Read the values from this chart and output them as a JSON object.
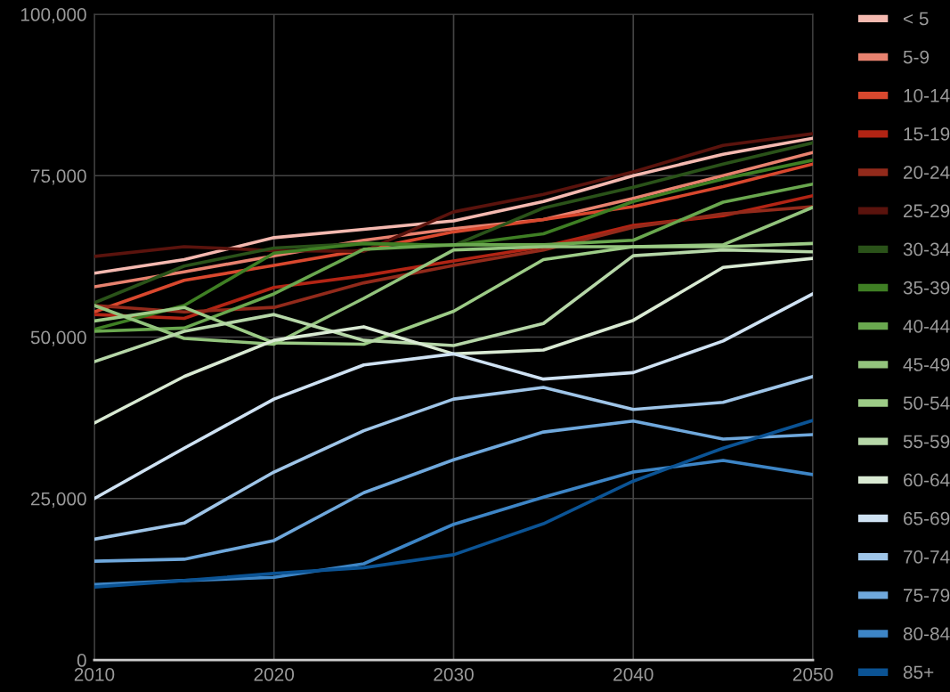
{
  "chart_data": {
    "type": "line",
    "x": [
      2010,
      2015,
      2020,
      2025,
      2030,
      2035,
      2040,
      2045,
      2050
    ],
    "xlim": [
      2010,
      2050
    ],
    "xticks": [
      2010,
      2020,
      2030,
      2040,
      2050
    ],
    "ylim": [
      0,
      100000
    ],
    "yticks": [
      0,
      {
        "value": 25000,
        "label": "25,000"
      },
      {
        "value": 50000,
        "label": "50,000"
      },
      {
        "value": 75000,
        "label": "75,000"
      },
      {
        "value": 100000,
        "label": "100,000"
      }
    ],
    "grid": true,
    "legend": "right",
    "marker": "none",
    "line_style": "solid",
    "series": [
      {
        "name": "< 5",
        "color": "#f4b9b0",
        "values": [
          59900,
          62000,
          65400,
          66700,
          68000,
          71000,
          75000,
          78300,
          80800
        ]
      },
      {
        "name": "5-9",
        "color": "#e8826f",
        "values": [
          57800,
          60100,
          62600,
          65000,
          66800,
          68200,
          71500,
          75000,
          78600
        ]
      },
      {
        "name": "10-14",
        "color": "#d9482e",
        "values": [
          53900,
          58800,
          61100,
          63500,
          66300,
          68200,
          70200,
          73300,
          76800
        ]
      },
      {
        "name": "15-19",
        "color": "#b22414",
        "values": [
          53500,
          52900,
          57700,
          59500,
          61800,
          64000,
          67300,
          68800,
          71900
        ]
      },
      {
        "name": "20-24",
        "color": "#922a1b",
        "values": [
          54900,
          53900,
          54600,
          58400,
          61100,
          63500,
          67000,
          69100,
          70200
        ]
      },
      {
        "name": "25-29",
        "color": "#5a130d",
        "values": [
          62500,
          64000,
          63400,
          63300,
          69400,
          72100,
          75600,
          79700,
          81500
        ]
      },
      {
        "name": "30-34",
        "color": "#2a5219",
        "values": [
          55300,
          61000,
          63800,
          64500,
          64200,
          70000,
          73200,
          76800,
          80100
        ]
      },
      {
        "name": "35-39",
        "color": "#3f7f24",
        "values": [
          51200,
          54900,
          63000,
          64500,
          64200,
          66000,
          71000,
          74500,
          77400
        ]
      },
      {
        "name": "40-44",
        "color": "#6aa84f",
        "values": [
          50900,
          51400,
          56700,
          63600,
          64300,
          64300,
          65000,
          70900,
          73700
        ]
      },
      {
        "name": "45-49",
        "color": "#93c47d",
        "values": [
          54900,
          49800,
          48900,
          56000,
          63500,
          64000,
          64000,
          64300,
          70100
        ]
      },
      {
        "name": "50-54",
        "color": "#9dcc87",
        "values": [
          52500,
          54600,
          49100,
          48900,
          54000,
          62000,
          64000,
          64000,
          64500
        ]
      },
      {
        "name": "55-59",
        "color": "#b6d7a8",
        "values": [
          46200,
          50900,
          53500,
          49500,
          48700,
          52100,
          62600,
          63500,
          63200
        ]
      },
      {
        "name": "60-64",
        "color": "#d9ead3",
        "values": [
          36700,
          43900,
          49500,
          51600,
          47400,
          48000,
          52600,
          60800,
          62200
        ]
      },
      {
        "name": "65-69",
        "color": "#cfe2f3",
        "values": [
          25000,
          32800,
          40400,
          45700,
          47400,
          43500,
          44500,
          49400,
          56700
        ]
      },
      {
        "name": "70-74",
        "color": "#9fc5e8",
        "values": [
          18700,
          21200,
          29100,
          35500,
          40400,
          42200,
          38800,
          39900,
          43900
        ]
      },
      {
        "name": "75-79",
        "color": "#6fa8dc",
        "values": [
          15300,
          15600,
          18500,
          25900,
          31000,
          35300,
          37000,
          34200,
          34900
        ]
      },
      {
        "name": "80-84",
        "color": "#3d85c6",
        "values": [
          11700,
          12300,
          12800,
          14900,
          21000,
          25200,
          29100,
          30900,
          28700
        ]
      },
      {
        "name": "85+",
        "color": "#0b5394",
        "values": [
          11300,
          12300,
          13400,
          14300,
          16300,
          21100,
          27700,
          32800,
          37100
        ]
      }
    ]
  }
}
